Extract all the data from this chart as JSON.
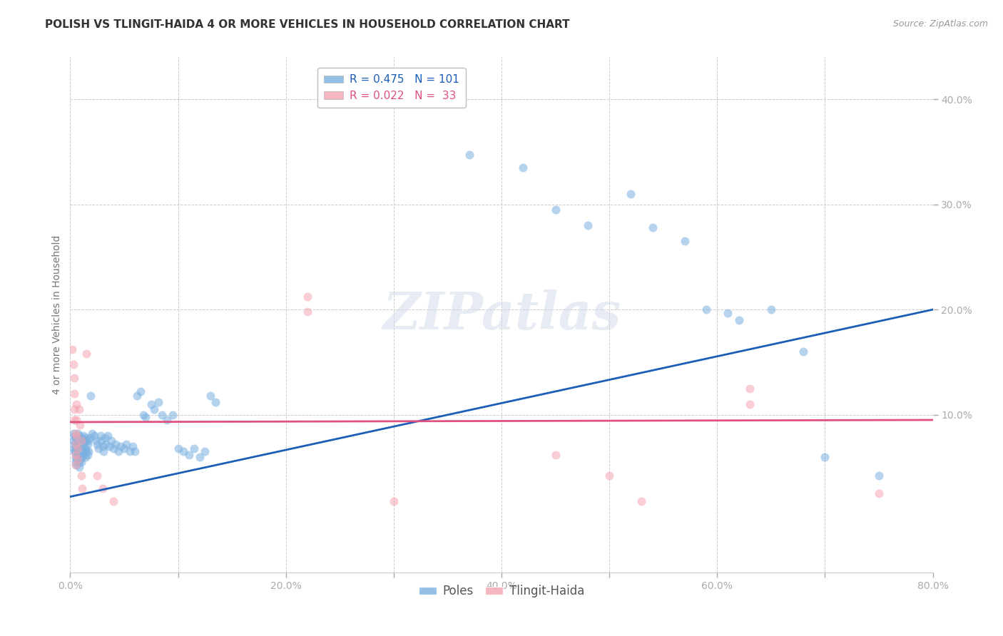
{
  "title": "POLISH VS TLINGIT-HAIDA 4 OR MORE VEHICLES IN HOUSEHOLD CORRELATION CHART",
  "source": "Source: ZipAtlas.com",
  "ylabel": "4 or more Vehicles in Household",
  "xlim": [
    0.0,
    0.8
  ],
  "ylim": [
    -0.05,
    0.44
  ],
  "xticks": [
    0.0,
    0.1,
    0.2,
    0.3,
    0.4,
    0.5,
    0.6,
    0.7,
    0.8
  ],
  "xtick_labels": [
    "0.0%",
    "",
    "",
    "",
    "",
    "",
    "",
    "",
    "80.0%"
  ],
  "yticks": [
    0.1,
    0.2,
    0.3,
    0.4
  ],
  "ytick_labels": [
    "10.0%",
    "20.0%",
    "30.0%",
    "40.0%"
  ],
  "poles_color": "#7ab0e0",
  "tlingit_color": "#f4a4b0",
  "poles_line_color": "#1a5eb8",
  "tlingit_line_color": "#e05080",
  "watermark": "ZIPatlas",
  "background_color": "#ffffff",
  "grid_color": "#cccccc",
  "title_fontsize": 11,
  "axis_label_fontsize": 10,
  "tick_fontsize": 10,
  "legend_fontsize": 11,
  "scatter_alpha": 0.55,
  "scatter_size": 75,
  "poles_line": [
    0.0,
    0.022,
    0.8,
    0.2
  ],
  "tlingit_line": [
    0.0,
    0.093,
    0.8,
    0.095
  ],
  "poles_scatter": [
    [
      0.003,
      0.082
    ],
    [
      0.003,
      0.075
    ],
    [
      0.004,
      0.068
    ],
    [
      0.004,
      0.072
    ],
    [
      0.004,
      0.065
    ],
    [
      0.004,
      0.08
    ],
    [
      0.005,
      0.055
    ],
    [
      0.005,
      0.078
    ],
    [
      0.005,
      0.07
    ],
    [
      0.005,
      0.06
    ],
    [
      0.005,
      0.065
    ],
    [
      0.006,
      0.058
    ],
    [
      0.006,
      0.052
    ],
    [
      0.007,
      0.082
    ],
    [
      0.007,
      0.075
    ],
    [
      0.007,
      0.07
    ],
    [
      0.007,
      0.062
    ],
    [
      0.008,
      0.055
    ],
    [
      0.008,
      0.05
    ],
    [
      0.008,
      0.08
    ],
    [
      0.009,
      0.072
    ],
    [
      0.009,
      0.065
    ],
    [
      0.009,
      0.058
    ],
    [
      0.01,
      0.078
    ],
    [
      0.01,
      0.07
    ],
    [
      0.01,
      0.062
    ],
    [
      0.01,
      0.055
    ],
    [
      0.011,
      0.075
    ],
    [
      0.011,
      0.068
    ],
    [
      0.011,
      0.06
    ],
    [
      0.012,
      0.08
    ],
    [
      0.012,
      0.07
    ],
    [
      0.013,
      0.062
    ],
    [
      0.013,
      0.075
    ],
    [
      0.013,
      0.065
    ],
    [
      0.014,
      0.078
    ],
    [
      0.014,
      0.068
    ],
    [
      0.014,
      0.06
    ],
    [
      0.015,
      0.075
    ],
    [
      0.015,
      0.065
    ],
    [
      0.016,
      0.072
    ],
    [
      0.016,
      0.062
    ],
    [
      0.017,
      0.075
    ],
    [
      0.017,
      0.065
    ],
    [
      0.018,
      0.078
    ],
    [
      0.019,
      0.118
    ],
    [
      0.02,
      0.082
    ],
    [
      0.022,
      0.08
    ],
    [
      0.024,
      0.075
    ],
    [
      0.025,
      0.072
    ],
    [
      0.026,
      0.068
    ],
    [
      0.028,
      0.08
    ],
    [
      0.029,
      0.075
    ],
    [
      0.03,
      0.07
    ],
    [
      0.031,
      0.065
    ],
    [
      0.032,
      0.078
    ],
    [
      0.033,
      0.072
    ],
    [
      0.035,
      0.08
    ],
    [
      0.036,
      0.07
    ],
    [
      0.038,
      0.075
    ],
    [
      0.04,
      0.068
    ],
    [
      0.042,
      0.072
    ],
    [
      0.045,
      0.065
    ],
    [
      0.047,
      0.07
    ],
    [
      0.05,
      0.068
    ],
    [
      0.052,
      0.072
    ],
    [
      0.055,
      0.065
    ],
    [
      0.058,
      0.07
    ],
    [
      0.06,
      0.065
    ],
    [
      0.062,
      0.118
    ],
    [
      0.065,
      0.122
    ],
    [
      0.068,
      0.1
    ],
    [
      0.07,
      0.098
    ],
    [
      0.075,
      0.11
    ],
    [
      0.078,
      0.105
    ],
    [
      0.082,
      0.112
    ],
    [
      0.085,
      0.1
    ],
    [
      0.09,
      0.095
    ],
    [
      0.095,
      0.1
    ],
    [
      0.1,
      0.068
    ],
    [
      0.105,
      0.065
    ],
    [
      0.11,
      0.062
    ],
    [
      0.115,
      0.068
    ],
    [
      0.12,
      0.06
    ],
    [
      0.125,
      0.065
    ],
    [
      0.13,
      0.118
    ],
    [
      0.135,
      0.112
    ],
    [
      0.37,
      0.347
    ],
    [
      0.42,
      0.335
    ],
    [
      0.45,
      0.295
    ],
    [
      0.48,
      0.28
    ],
    [
      0.52,
      0.31
    ],
    [
      0.54,
      0.278
    ],
    [
      0.57,
      0.265
    ],
    [
      0.59,
      0.2
    ],
    [
      0.61,
      0.197
    ],
    [
      0.62,
      0.19
    ],
    [
      0.65,
      0.2
    ],
    [
      0.68,
      0.16
    ],
    [
      0.7,
      0.06
    ],
    [
      0.75,
      0.042
    ]
  ],
  "tlingit_scatter": [
    [
      0.002,
      0.162
    ],
    [
      0.003,
      0.148
    ],
    [
      0.004,
      0.135
    ],
    [
      0.004,
      0.12
    ],
    [
      0.004,
      0.105
    ],
    [
      0.004,
      0.095
    ],
    [
      0.005,
      0.082
    ],
    [
      0.005,
      0.072
    ],
    [
      0.005,
      0.062
    ],
    [
      0.005,
      0.052
    ],
    [
      0.006,
      0.11
    ],
    [
      0.006,
      0.095
    ],
    [
      0.006,
      0.08
    ],
    [
      0.007,
      0.068
    ],
    [
      0.007,
      0.058
    ],
    [
      0.008,
      0.105
    ],
    [
      0.009,
      0.09
    ],
    [
      0.01,
      0.075
    ],
    [
      0.01,
      0.042
    ],
    [
      0.011,
      0.03
    ],
    [
      0.015,
      0.158
    ],
    [
      0.025,
      0.042
    ],
    [
      0.03,
      0.03
    ],
    [
      0.04,
      0.018
    ],
    [
      0.22,
      0.212
    ],
    [
      0.22,
      0.198
    ],
    [
      0.3,
      0.018
    ],
    [
      0.45,
      0.062
    ],
    [
      0.5,
      0.042
    ],
    [
      0.53,
      0.018
    ],
    [
      0.63,
      0.125
    ],
    [
      0.63,
      0.11
    ],
    [
      0.75,
      0.025
    ]
  ]
}
